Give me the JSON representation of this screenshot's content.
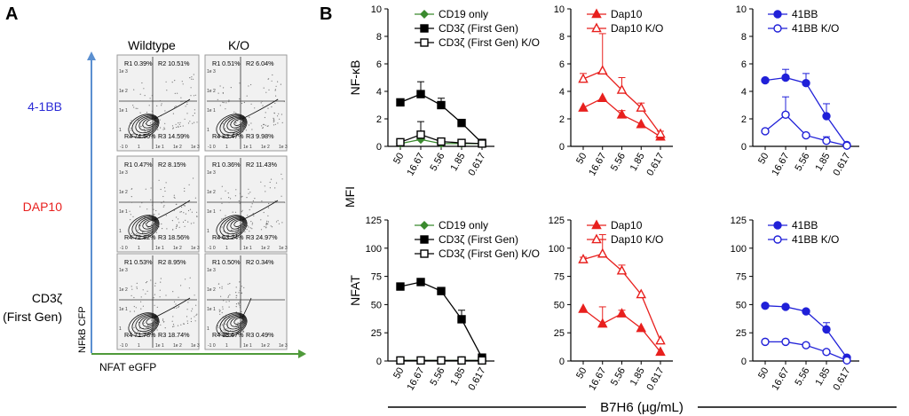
{
  "figure": {
    "panel_a_letter": "A",
    "panel_b_letter": "B",
    "mfi_label": "MFI",
    "shared_xlabel": "B7H6 (µg/mL)"
  },
  "flow": {
    "col_titles": [
      "Wildtype",
      "K/O"
    ],
    "row_labels": [
      {
        "line1": "4-1BB",
        "line2": "",
        "color": "#2a2ad6"
      },
      {
        "line1": "DAP10",
        "line2": "",
        "color": "#e8201e"
      },
      {
        "line1": "CD3ζ",
        "line2": "(First Gen)",
        "color": "#000000"
      }
    ],
    "y_axis_label": "NFkB  CFP",
    "x_axis_label": "NFAT eGFP",
    "axis_color_y": "#5b8fd0",
    "axis_color_x": "#4f9a3a",
    "tick_labels": [
      "-1 0",
      "1",
      "1e 1",
      "1e 2",
      "1e 3"
    ],
    "y_tick_labels": [
      "1e 3",
      "1e 2",
      "1e 1",
      "1",
      "-1 0"
    ],
    "plots": [
      [
        {
          "r1": "R1 0.39%",
          "r2": "R2 10.51%",
          "r3": "R3 14.59%",
          "r4": "R4 74.50%"
        },
        {
          "r1": "R1 0.51%",
          "r2": "R2 6.04%",
          "r3": "R3 9.98%",
          "r4": "R4 83.47%"
        }
      ],
      [
        {
          "r1": "R1 0.47%",
          "r2": "R2 8.15%",
          "r3": "R3 18.56%",
          "r4": "R4 72.82%"
        },
        {
          "r1": "R1 0.36%",
          "r2": "R2 11.43%",
          "r3": "R3 24.97%",
          "r4": "R4 63.24%"
        }
      ],
      [
        {
          "r1": "R1 0.53%",
          "r2": "R2 8.95%",
          "r3": "R3 18.74%",
          "r4": "R4 71.78%"
        },
        {
          "r1": "R1 0.50%",
          "r2": "R2 0.34%",
          "r3": "R3 0.49%",
          "r4": "R4 98.67%"
        }
      ]
    ]
  },
  "chart_data": [
    {
      "type": "line",
      "id": "nfkb-cd3z",
      "row_label": "NF-κB",
      "categories": [
        "50",
        "16.67",
        "5.56",
        "1.85",
        "0.617"
      ],
      "ylim": [
        0,
        10
      ],
      "yticks": [
        "0",
        "2",
        "4",
        "6",
        "8",
        "10"
      ],
      "series": [
        {
          "name": "CD19 only",
          "color": "#3a8a2e",
          "marker": "diamond",
          "filled": true,
          "values": [
            0.2,
            0.5,
            0.2,
            0.2,
            0.2
          ],
          "errors": [
            0,
            0,
            0,
            0,
            0
          ]
        },
        {
          "name": "CD3ζ (First Gen)",
          "color": "#000000",
          "marker": "square",
          "filled": true,
          "values": [
            3.2,
            3.8,
            3.0,
            1.7,
            0.25
          ],
          "errors": [
            0,
            0.9,
            0.5,
            0,
            0
          ]
        },
        {
          "name": "CD3ζ (First Gen) K/O",
          "color": "#000000",
          "marker": "square",
          "filled": false,
          "values": [
            0.3,
            0.85,
            0.35,
            0.25,
            0.2
          ],
          "errors": [
            0,
            0.95,
            0,
            0,
            0
          ]
        }
      ]
    },
    {
      "type": "line",
      "id": "nfkb-dap10",
      "categories": [
        "50",
        "16.67",
        "5.56",
        "1.85",
        "0.617"
      ],
      "ylim": [
        0,
        10
      ],
      "yticks": [
        "0",
        "2",
        "4",
        "6",
        "8",
        "10"
      ],
      "series": [
        {
          "name": "Dap10",
          "color": "#e8201e",
          "marker": "triangle",
          "filled": true,
          "values": [
            2.8,
            3.5,
            2.3,
            1.6,
            0.7
          ],
          "errors": [
            0,
            0,
            0.3,
            0,
            0
          ]
        },
        {
          "name": "Dap10 K/O",
          "color": "#e8201e",
          "marker": "triangle",
          "filled": false,
          "values": [
            4.9,
            5.5,
            4.1,
            2.8,
            0.9
          ],
          "errors": [
            0.4,
            2.7,
            0.9,
            0.35,
            0.2
          ]
        }
      ]
    },
    {
      "type": "line",
      "id": "nfkb-41bb",
      "categories": [
        "50",
        "16.67",
        "5.56",
        "1.85",
        "0.617"
      ],
      "ylim": [
        0,
        10
      ],
      "yticks": [
        "0",
        "2",
        "4",
        "6",
        "8",
        "10"
      ],
      "series": [
        {
          "name": "41BB",
          "color": "#2020d8",
          "marker": "circle",
          "filled": true,
          "values": [
            4.8,
            5.0,
            4.6,
            2.2,
            0.1
          ],
          "errors": [
            0.1,
            0.6,
            0.7,
            0.9,
            0
          ]
        },
        {
          "name": "41BB K/O",
          "color": "#2020d8",
          "marker": "circle",
          "filled": false,
          "values": [
            1.1,
            2.3,
            0.8,
            0.4,
            0.05
          ],
          "errors": [
            0,
            1.3,
            0,
            0.3,
            0
          ]
        }
      ]
    },
    {
      "type": "line",
      "id": "nfat-cd3z",
      "row_label": "NFAT",
      "categories": [
        "50",
        "16.67",
        "5.56",
        "1.85",
        "0.617"
      ],
      "ylim": [
        0,
        125
      ],
      "yticks": [
        "0",
        "25",
        "50",
        "75",
        "100",
        "125"
      ],
      "series": [
        {
          "name": "CD19 only",
          "color": "#3a8a2e",
          "marker": "diamond",
          "filled": true,
          "values": [
            0.5,
            0.5,
            0.5,
            0.5,
            0.5
          ],
          "errors": [
            0,
            0,
            0,
            0,
            0
          ]
        },
        {
          "name": "CD3ζ (First Gen)",
          "color": "#000000",
          "marker": "square",
          "filled": true,
          "values": [
            66,
            70,
            62,
            37,
            3
          ],
          "errors": [
            3,
            3,
            3,
            8,
            2
          ]
        },
        {
          "name": "CD3ζ (First Gen) K/O",
          "color": "#000000",
          "marker": "square",
          "filled": false,
          "values": [
            0.5,
            0.5,
            0.5,
            0.5,
            0.5
          ],
          "errors": [
            0,
            0,
            0,
            0,
            0
          ]
        }
      ]
    },
    {
      "type": "line",
      "id": "nfat-dap10",
      "categories": [
        "50",
        "16.67",
        "5.56",
        "1.85",
        "0.617"
      ],
      "ylim": [
        0,
        125
      ],
      "yticks": [
        "0",
        "25",
        "50",
        "75",
        "100",
        "125"
      ],
      "series": [
        {
          "name": "Dap10",
          "color": "#e8201e",
          "marker": "triangle",
          "filled": true,
          "values": [
            46,
            33,
            42,
            29,
            8
          ],
          "errors": [
            0,
            15,
            3,
            0,
            0
          ]
        },
        {
          "name": "Dap10 K/O",
          "color": "#e8201e",
          "marker": "triangle",
          "filled": false,
          "values": [
            90,
            95,
            80,
            59,
            18
          ],
          "errors": [
            2,
            17,
            5,
            0,
            0
          ]
        }
      ]
    },
    {
      "type": "line",
      "id": "nfat-41bb",
      "categories": [
        "50",
        "16.67",
        "5.56",
        "1.85",
        "0.617"
      ],
      "ylim": [
        0,
        125
      ],
      "yticks": [
        "0",
        "25",
        "50",
        "75",
        "100",
        "125"
      ],
      "series": [
        {
          "name": "41BB",
          "color": "#2020d8",
          "marker": "circle",
          "filled": true,
          "values": [
            49,
            48,
            44,
            28,
            3
          ],
          "errors": [
            0,
            0,
            0,
            6,
            0
          ]
        },
        {
          "name": "41BB K/O",
          "color": "#2020d8",
          "marker": "circle",
          "filled": false,
          "values": [
            17,
            17,
            14,
            8,
            0.5
          ],
          "errors": [
            0,
            0,
            0,
            0,
            0
          ]
        }
      ]
    }
  ]
}
